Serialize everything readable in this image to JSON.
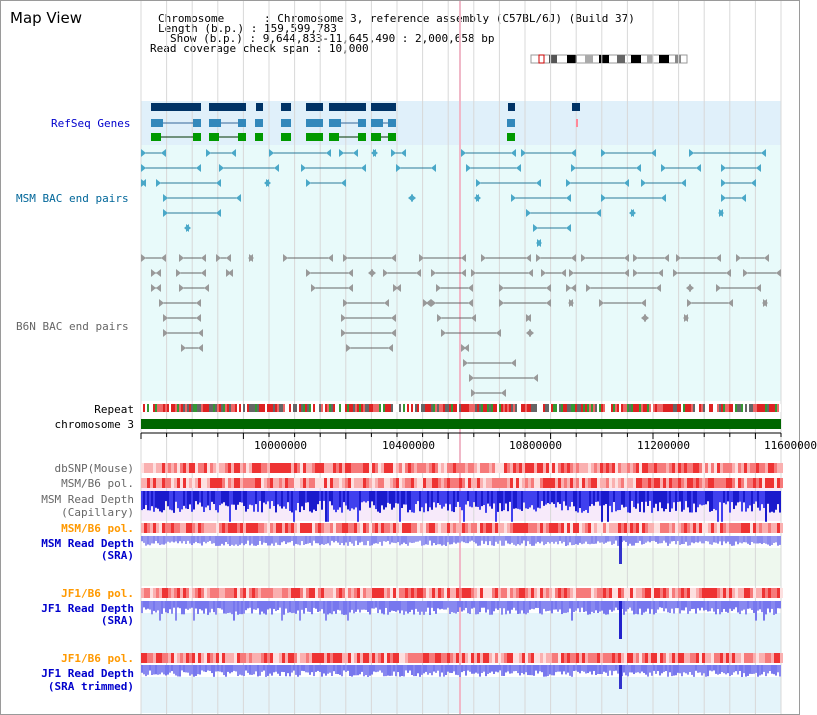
{
  "title": "Map View",
  "info": {
    "chromosome_key": "Chromosome",
    "chromosome_val": "Chromosome 3, reference assembly (C57BL/6J) (Build 37)",
    "length_key": "Length (b.p.)",
    "length_val": "159,599,783",
    "show_key": "Show (b.p.)",
    "show_val": "9,644,833-11,645,490 : 2,000,658 bp",
    "span_key": "Read coverage check span",
    "span_val": "10,000"
  },
  "tracks": {
    "refseq": "RefSeq Genes",
    "msm_bac": "MSM BAC end pairs",
    "b6n_bac": "B6N BAC end pairs",
    "repeat": "Repeat",
    "chrom": "chromosome 3",
    "dbsnp": "dbSNP(Mouse)",
    "msm_pol1": "MSM/B6 pol.",
    "msm_depth_cap_1": "MSM Read Depth",
    "msm_depth_cap_2": "(Capillary)",
    "msm_pol2": "MSM/B6 pol.",
    "msm_depth_sra_1": "MSM Read Depth",
    "msm_depth_sra_2": "(SRA)",
    "jf1_pol1": "JF1/B6 pol.",
    "jf1_depth_1": "JF1 Read Depth",
    "jf1_depth_2": "(SRA)",
    "jf1_pol2": "JF1/B6 pol.",
    "jf1_trim_1": "JF1 Read Depth",
    "jf1_trim_2": "(SRA trimmed)"
  },
  "ruler": [
    "10000000",
    "10400000",
    "10800000",
    "11200000",
    "11600000"
  ],
  "colors": {
    "black_label": "#000000",
    "blue_label": "#0000cc",
    "teal_label": "#006699",
    "gray_label": "#666666",
    "orange_label": "#ff9900",
    "chrom_bar": "#006600",
    "refseq_bg": "#e0f0fa",
    "bac_bg": "#e8fafa"
  }
}
